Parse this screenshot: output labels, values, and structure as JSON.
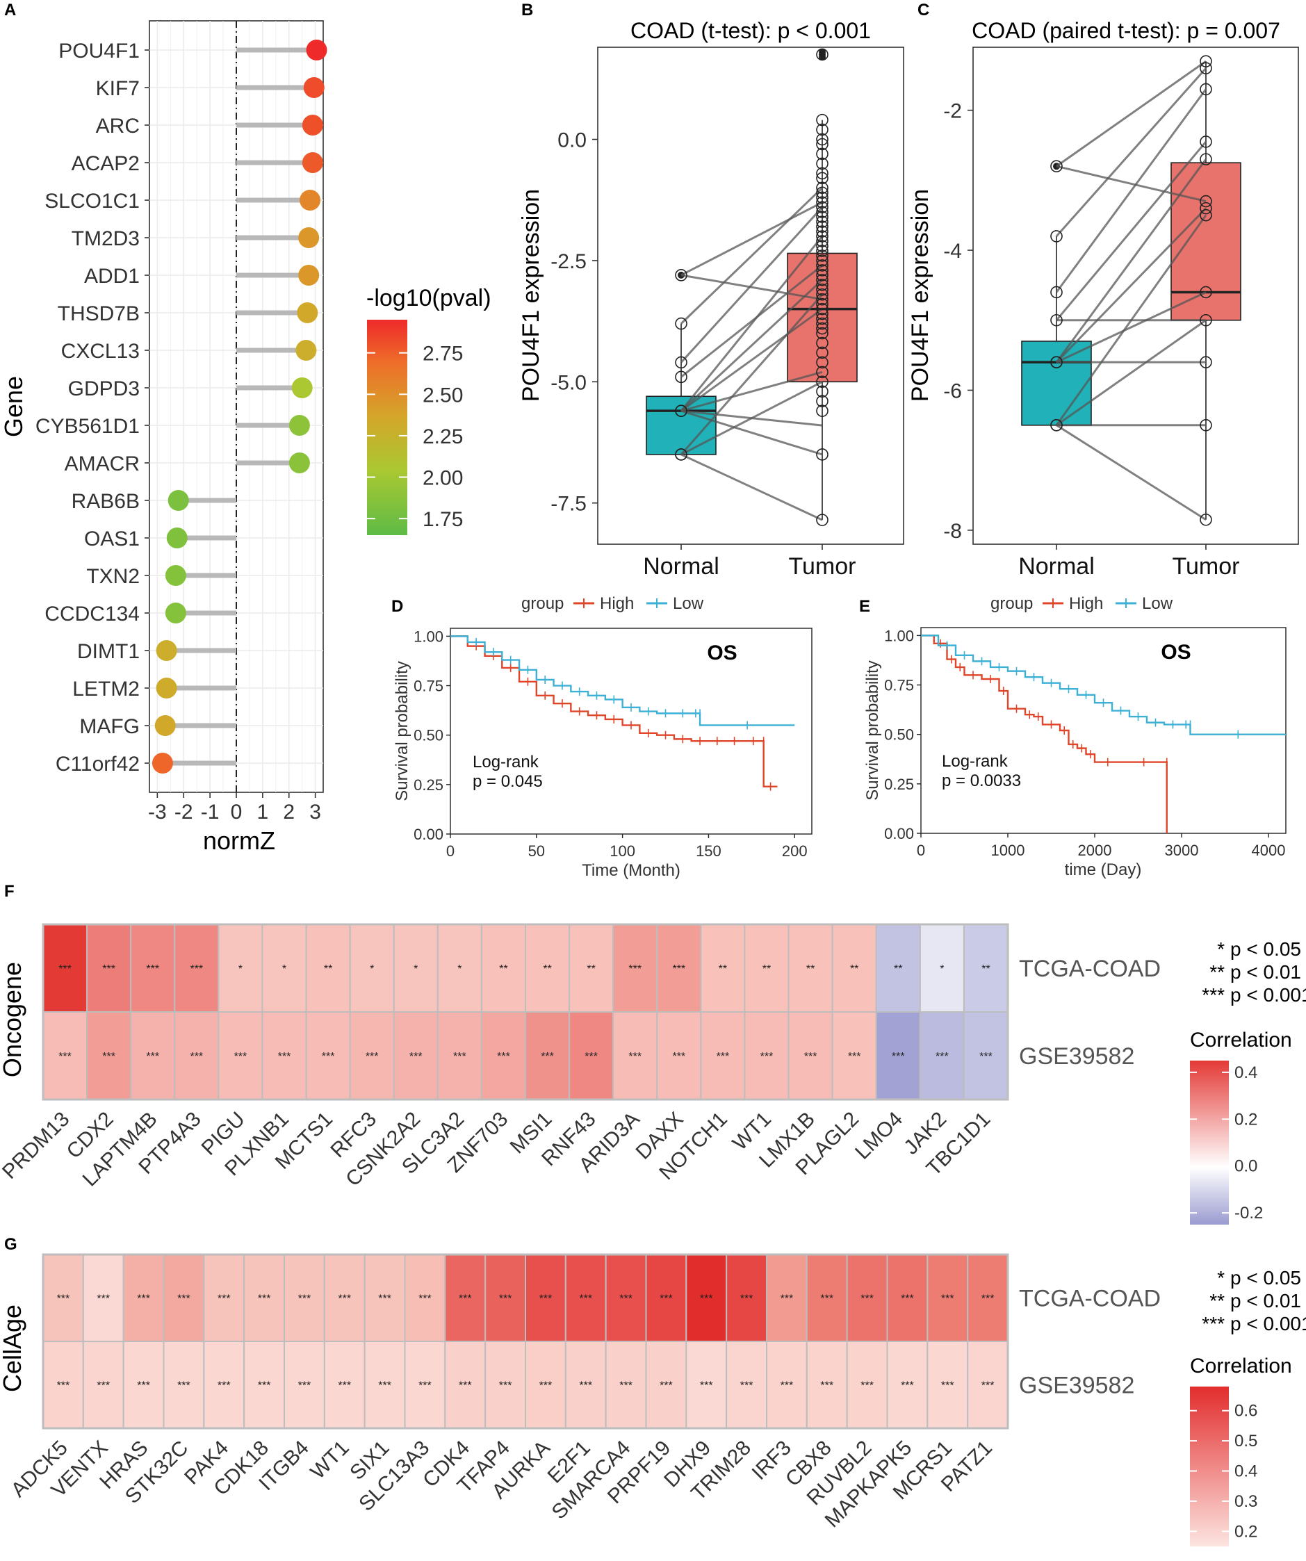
{
  "colors": {
    "normal_box": "#20B2B8",
    "tumor_box": "#E8736C",
    "high": "#E0452A",
    "low": "#3DB0D6",
    "grid": "#EBEBEB",
    "heat_border": "#BDBDBD"
  },
  "chart_data": [
    {
      "panel": "A",
      "type": "lollipop",
      "xlabel": "normZ",
      "ylabel": "Gene",
      "xlim": [
        -3.3,
        3.3
      ],
      "xticks": [
        "-3",
        "-2",
        "-1",
        "0",
        "1",
        "2",
        "3"
      ],
      "legend_title": "-log10(pval)",
      "legend_ticks": [
        "2.75",
        "2.50",
        "2.25",
        "2.00",
        "1.75"
      ],
      "color_range": [
        1.65,
        2.95
      ],
      "genes": [
        "POU4F1",
        "KIF7",
        "ARC",
        "ACAP2",
        "SLCO1C1",
        "TM2D3",
        "ADD1",
        "THSD7B",
        "CXCL13",
        "GDPD3",
        "CYB561D1",
        "AMACR",
        "RAB6B",
        "OAS1",
        "TXN2",
        "CCDC134",
        "DIMT1",
        "LETM2",
        "MAFG",
        "C11orf42"
      ],
      "normZ": [
        3.05,
        2.95,
        2.9,
        2.9,
        2.8,
        2.75,
        2.75,
        2.7,
        2.65,
        2.5,
        2.4,
        2.4,
        -2.2,
        -2.25,
        -2.3,
        -2.3,
        -2.65,
        -2.65,
        -2.7,
        -2.8
      ],
      "neglog10p": [
        2.95,
        2.82,
        2.8,
        2.77,
        2.55,
        2.45,
        2.45,
        2.35,
        2.3,
        2.05,
        1.9,
        1.88,
        1.8,
        1.82,
        1.85,
        1.85,
        2.3,
        2.32,
        2.35,
        2.72
      ]
    },
    {
      "panel": "B",
      "type": "box",
      "title": "COAD (t-test): p < 0.001",
      "ylabel": "POU4F1 expression",
      "categories": [
        "Normal",
        "Tumor"
      ],
      "ylim": [
        -8.35,
        1.9
      ],
      "yticks": [
        "0.0",
        "-2.5",
        "-5.0",
        "-7.5"
      ],
      "ytick_values": [
        0,
        -2.5,
        -5,
        -7.5
      ],
      "normal_box": {
        "min": -6.5,
        "q1": -6.5,
        "median": -5.6,
        "q3": -5.3,
        "max": -3.8,
        "outliers": [
          -2.8
        ]
      },
      "tumor_box": {
        "min": -7.85,
        "q1": -5.0,
        "median": -3.5,
        "q3": -2.35,
        "max": 0.4,
        "outliers": [
          1.7,
          1.8,
          1.75
        ]
      },
      "normal_points": [
        -2.8,
        -3.8,
        -4.6,
        -4.9,
        -5.6,
        -5.6,
        -6.5,
        -6.5
      ],
      "tumor_points": [
        1.75,
        0.4,
        0.2,
        0.0,
        -0.1,
        -0.3,
        -0.5,
        -0.7,
        -0.8,
        -1.0,
        -1.1,
        -1.2,
        -1.3,
        -1.4,
        -1.5,
        -1.6,
        -1.7,
        -1.8,
        -1.9,
        -2.0,
        -2.1,
        -2.2,
        -2.3,
        -2.4,
        -2.5,
        -2.6,
        -2.7,
        -2.8,
        -2.9,
        -3.0,
        -3.1,
        -3.2,
        -3.3,
        -3.4,
        -3.5,
        -3.6,
        -3.7,
        -3.8,
        -3.9,
        -4.0,
        -4.2,
        -4.4,
        -4.6,
        -4.8,
        -5.0,
        -5.2,
        -5.4,
        -5.6,
        -6.5,
        -7.85
      ],
      "pairs": [
        [
          -2.8,
          -1.3
        ],
        [
          -2.8,
          -3.3
        ],
        [
          -3.8,
          -1.0
        ],
        [
          -4.6,
          -1.4
        ],
        [
          -4.9,
          -2.6
        ],
        [
          -5.6,
          -2.0
        ],
        [
          -5.6,
          -3.5
        ],
        [
          -5.6,
          -4.8
        ],
        [
          -5.6,
          -5.9
        ],
        [
          -5.6,
          -6.5
        ],
        [
          -6.5,
          -3.2
        ],
        [
          -6.5,
          -5.0
        ],
        [
          -6.5,
          -7.85
        ],
        [
          -5.6,
          -2.9
        ]
      ]
    },
    {
      "panel": "C",
      "type": "box",
      "title": "COAD (paired t-test): p = 0.007",
      "ylabel": "POU4F1 expression",
      "categories": [
        "Normal",
        "Tumor"
      ],
      "ylim": [
        -8.2,
        -1.1
      ],
      "yticks": [
        "-2",
        "-4",
        "-6",
        "-8"
      ],
      "ytick_values": [
        -2,
        -4,
        -6,
        -8
      ],
      "normal_box": {
        "min": -6.5,
        "q1": -6.5,
        "median": -5.6,
        "q3": -5.3,
        "max": -3.8,
        "outliers": [
          -2.8
        ]
      },
      "tumor_box": {
        "min": -7.85,
        "q1": -5.0,
        "median": -4.6,
        "q3": -2.75,
        "max": -1.3,
        "outliers": []
      },
      "normal_points": [
        -2.8,
        -3.8,
        -4.6,
        -5.0,
        -5.6,
        -5.6,
        -6.5,
        -6.5
      ],
      "tumor_points": [
        -1.3,
        -1.4,
        -1.7,
        -2.45,
        -2.7,
        -3.3,
        -3.4,
        -3.5,
        -4.6,
        -5.0,
        -5.6,
        -6.5,
        -7.85
      ],
      "pairs": [
        [
          -2.8,
          -1.3
        ],
        [
          -2.8,
          -3.3
        ],
        [
          -3.8,
          -1.4
        ],
        [
          -4.6,
          -1.7
        ],
        [
          -5.0,
          -2.45
        ],
        [
          -5.6,
          -2.7
        ],
        [
          -5.6,
          -3.4
        ],
        [
          -5.6,
          -4.6
        ],
        [
          -5.6,
          -5.6
        ],
        [
          -6.5,
          -3.5
        ],
        [
          -6.5,
          -5.0
        ],
        [
          -6.5,
          -6.5
        ],
        [
          -6.5,
          -7.85
        ],
        [
          -5.0,
          -5.0
        ]
      ]
    },
    {
      "panel": "D",
      "type": "line",
      "subtype": "kaplan-meier",
      "legend_label": "group",
      "legend": [
        "High",
        "Low"
      ],
      "annotation": "OS",
      "test_label": "Log-rank",
      "pvalue": "p = 0.045",
      "xlabel": "Time (Month)",
      "ylabel": "Survival probability",
      "xlim": [
        0,
        210
      ],
      "ylim": [
        0,
        1.04
      ],
      "xticks": [
        "0",
        "50",
        "100",
        "150",
        "200"
      ],
      "xtick_values": [
        0,
        50,
        100,
        150,
        200
      ],
      "yticks": [
        "1.00",
        "0.75",
        "0.50",
        "0.25",
        "0.00"
      ],
      "ytick_values": [
        1,
        0.75,
        0.5,
        0.25,
        0
      ],
      "series": [
        {
          "name": "High",
          "x": [
            0,
            10,
            20,
            30,
            40,
            50,
            60,
            70,
            80,
            90,
            100,
            110,
            120,
            130,
            140,
            150,
            160,
            170,
            182,
            182,
            190
          ],
          "y": [
            1,
            0.95,
            0.9,
            0.84,
            0.77,
            0.7,
            0.66,
            0.62,
            0.6,
            0.58,
            0.55,
            0.51,
            0.5,
            0.48,
            0.47,
            0.47,
            0.47,
            0.47,
            0.47,
            0.24,
            0.24
          ]
        },
        {
          "name": "Low",
          "x": [
            0,
            10,
            20,
            30,
            40,
            50,
            60,
            70,
            80,
            90,
            100,
            110,
            120,
            130,
            140,
            145,
            145,
            200
          ],
          "y": [
            1,
            0.97,
            0.92,
            0.88,
            0.83,
            0.78,
            0.75,
            0.72,
            0.7,
            0.68,
            0.64,
            0.62,
            0.61,
            0.61,
            0.61,
            0.61,
            0.55,
            0.55
          ]
        }
      ]
    },
    {
      "panel": "E",
      "type": "line",
      "subtype": "kaplan-meier",
      "legend_label": "group",
      "legend": [
        "High",
        "Low"
      ],
      "annotation": "OS",
      "test_label": "Log-rank",
      "pvalue": "p = 0.0033",
      "xlabel": "time (Day)",
      "ylabel": "Survival probability",
      "xlim": [
        0,
        4200
      ],
      "ylim": [
        0,
        1.04
      ],
      "xticks": [
        "0",
        "1000",
        "2000",
        "3000",
        "4000"
      ],
      "xtick_values": [
        0,
        1000,
        2000,
        3000,
        4000
      ],
      "yticks": [
        "1.00",
        "0.75",
        "0.50",
        "0.25",
        "0.00"
      ],
      "ytick_values": [
        1,
        0.75,
        0.5,
        0.25,
        0
      ],
      "series": [
        {
          "name": "High",
          "x": [
            0,
            150,
            300,
            400,
            500,
            700,
            900,
            1000,
            1200,
            1300,
            1400,
            1600,
            1700,
            1800,
            1900,
            2000,
            2300,
            2830,
            2830
          ],
          "y": [
            1,
            0.96,
            0.88,
            0.84,
            0.8,
            0.78,
            0.72,
            0.63,
            0.6,
            0.59,
            0.55,
            0.52,
            0.45,
            0.43,
            0.4,
            0.36,
            0.36,
            0.36,
            0.0
          ]
        },
        {
          "name": "Low",
          "x": [
            0,
            200,
            400,
            600,
            800,
            1000,
            1200,
            1400,
            1600,
            1800,
            2000,
            2200,
            2400,
            2600,
            2800,
            3000,
            3100,
            3100,
            4200
          ],
          "y": [
            1,
            0.95,
            0.9,
            0.87,
            0.84,
            0.82,
            0.79,
            0.76,
            0.73,
            0.7,
            0.66,
            0.62,
            0.59,
            0.56,
            0.55,
            0.55,
            0.55,
            0.5,
            0.5
          ]
        }
      ]
    },
    {
      "panel": "F",
      "type": "heatmap",
      "ylabel": "Oncogene",
      "row_labels": [
        "TCGA-COAD",
        "GSE39582"
      ],
      "columns": [
        "PRDM13",
        "CDX2",
        "LAPTM4B",
        "PTP4A3",
        "PIGU",
        "PLXNB1",
        "MCTS1",
        "RFC3",
        "CSNK2A2",
        "SLC3A2",
        "ZNF703",
        "MSI1",
        "RNF43",
        "ARID3A",
        "DAXX",
        "NOTCH1",
        "WT1",
        "LMX1B",
        "PLAGL2",
        "LMO4",
        "JAK2",
        "TBC1D1"
      ],
      "values": [
        [
          0.46,
          0.32,
          0.3,
          0.3,
          0.18,
          0.18,
          0.19,
          0.18,
          0.18,
          0.18,
          0.19,
          0.19,
          0.19,
          0.26,
          0.26,
          0.19,
          0.19,
          0.19,
          0.19,
          -0.15,
          -0.06,
          -0.13
        ],
        [
          0.2,
          0.26,
          0.22,
          0.22,
          0.2,
          0.2,
          0.2,
          0.21,
          0.22,
          0.22,
          0.24,
          0.28,
          0.3,
          0.2,
          0.2,
          0.2,
          0.2,
          0.2,
          0.19,
          -0.23,
          -0.17,
          -0.15
        ]
      ],
      "stars": [
        [
          "***",
          "***",
          "***",
          "***",
          "*",
          "*",
          "**",
          "*",
          "*",
          "*",
          "**",
          "**",
          "**",
          "***",
          "***",
          "**",
          "**",
          "**",
          "**",
          "**",
          "*",
          "**"
        ],
        [
          "***",
          "***",
          "***",
          "***",
          "***",
          "***",
          "***",
          "***",
          "***",
          "***",
          "***",
          "***",
          "***",
          "***",
          "***",
          "***",
          "***",
          "***",
          "***",
          "***",
          "***",
          "***"
        ]
      ],
      "sig_legend": [
        {
          "stars": "*",
          "text": "p < 0.05"
        },
        {
          "stars": "**",
          "text": "p < 0.01"
        },
        {
          "stars": "***",
          "text": "p < 0.001"
        }
      ],
      "legend_title": "Correlation",
      "legend_ticks": [
        "0.4",
        "0.2",
        "0.0",
        "-0.2"
      ],
      "legend_tick_values": [
        0.4,
        0.2,
        0.0,
        -0.2
      ],
      "color_range": [
        -0.25,
        0.45
      ]
    },
    {
      "panel": "G",
      "type": "heatmap",
      "ylabel": "CellAge",
      "row_labels": [
        "TCGA-COAD",
        "GSE39582"
      ],
      "columns": [
        "ADCK5",
        "VENTX",
        "HRAS",
        "STK32C",
        "PAK4",
        "CDK18",
        "ITGB4",
        "WT1",
        "SIX1",
        "SLC13A3",
        "CDK4",
        "TFAP4",
        "AURKA",
        "E2F1",
        "SMARCA4",
        "PRPF19",
        "DHX9",
        "TRIM28",
        "IRF3",
        "CBX8",
        "RUVBL2",
        "MAPKAPK5",
        "MCRS1",
        "PATZ1"
      ],
      "values": [
        [
          0.3,
          0.2,
          0.36,
          0.38,
          0.3,
          0.3,
          0.3,
          0.3,
          0.3,
          0.32,
          0.55,
          0.56,
          0.6,
          0.6,
          0.6,
          0.62,
          0.68,
          0.62,
          0.42,
          0.5,
          0.52,
          0.52,
          0.5,
          0.5
        ],
        [
          0.23,
          0.22,
          0.21,
          0.21,
          0.21,
          0.21,
          0.21,
          0.21,
          0.21,
          0.21,
          0.24,
          0.24,
          0.25,
          0.24,
          0.24,
          0.24,
          0.2,
          0.22,
          0.23,
          0.23,
          0.23,
          0.21,
          0.21,
          0.22
        ]
      ],
      "stars": [
        [
          "***",
          "***",
          "***",
          "***",
          "***",
          "***",
          "***",
          "***",
          "***",
          "***",
          "***",
          "***",
          "***",
          "***",
          "***",
          "***",
          "***",
          "***",
          "***",
          "***",
          "***",
          "***",
          "***",
          "***"
        ],
        [
          "***",
          "***",
          "***",
          "***",
          "***",
          "***",
          "***",
          "***",
          "***",
          "***",
          "***",
          "***",
          "***",
          "***",
          "***",
          "***",
          "***",
          "***",
          "***",
          "***",
          "***",
          "***",
          "***",
          "***"
        ]
      ],
      "sig_legend": [
        {
          "stars": "*",
          "text": "p < 0.05"
        },
        {
          "stars": "**",
          "text": "p < 0.01"
        },
        {
          "stars": "***",
          "text": "p < 0.001"
        }
      ],
      "legend_title": "Correlation",
      "legend_ticks": [
        "0.6",
        "0.5",
        "0.4",
        "0.3",
        "0.2"
      ],
      "legend_tick_values": [
        0.6,
        0.5,
        0.4,
        0.3,
        0.2
      ],
      "color_range": [
        0.15,
        0.68
      ]
    }
  ],
  "panel_letters": [
    "A",
    "B",
    "C",
    "D",
    "E",
    "F",
    "G"
  ]
}
